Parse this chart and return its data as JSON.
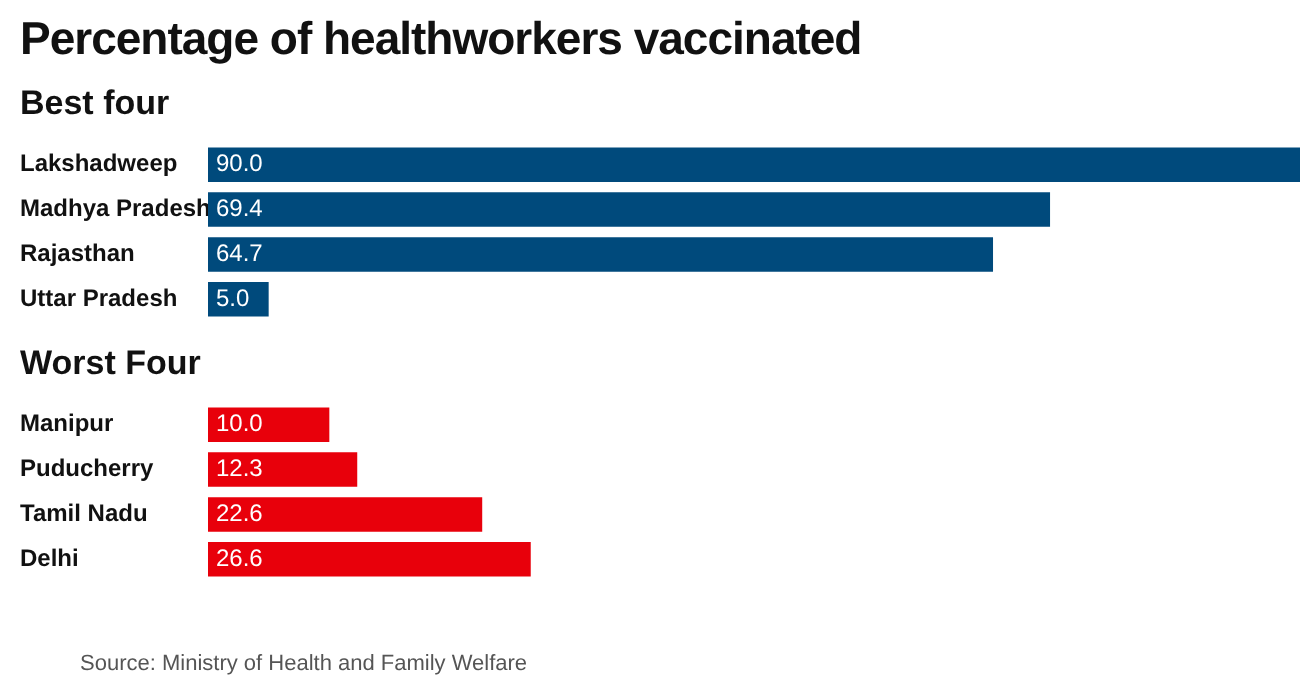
{
  "chart_data": [
    {
      "type": "bar",
      "orientation": "horizontal",
      "title": "Percentage of healthworkers vaccinated",
      "subtitle": "Best four",
      "categories": [
        "Lakshadweep",
        "Madhya Pradesh",
        "Rajasthan",
        "Uttar Pradesh"
      ],
      "values": [
        90.0,
        69.4,
        64.7,
        5.0
      ],
      "value_labels": [
        "90.0",
        "69.4",
        "64.7",
        "5.0"
      ],
      "color": "#004a7c",
      "tick_labels": "y"
    },
    {
      "type": "bar",
      "orientation": "horizontal",
      "subtitle": "Worst Four",
      "categories": [
        "Manipur",
        "Puducherry",
        "Tamil Nadu",
        "Delhi"
      ],
      "values": [
        10.0,
        12.3,
        22.6,
        26.6
      ],
      "value_labels": [
        "10.0",
        "12.3",
        "22.6",
        "26.6"
      ],
      "color": "#e8000b",
      "tick_labels": "y",
      "annotations": [
        "Source: Ministry of Health and Family Welfare"
      ]
    }
  ]
}
